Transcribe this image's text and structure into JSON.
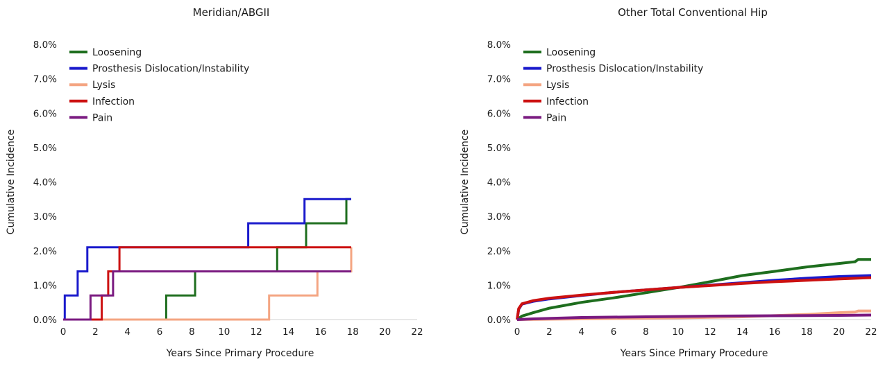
{
  "chart_data": [
    {
      "type": "line",
      "step": true,
      "title": "Meridian/ABGII",
      "xlabel": "Years Since Primary Procedure",
      "ylabel": "Cumulative Incidence",
      "xlim": [
        0,
        22
      ],
      "ylim": [
        0,
        8
      ],
      "xticks": [
        "0",
        "2",
        "4",
        "6",
        "8",
        "10",
        "12",
        "14",
        "16",
        "18",
        "20",
        "22"
      ],
      "yticks": [
        "0.0%",
        "1.0%",
        "2.0%",
        "3.0%",
        "4.0%",
        "5.0%",
        "6.0%",
        "7.0%",
        "8.0%"
      ],
      "grid": false,
      "legend_position": "top-left",
      "series": [
        {
          "name": "Loosening",
          "color": "#1e6e1e",
          "points": [
            [
              0,
              0
            ],
            [
              6.4,
              0
            ],
            [
              6.4,
              0.7
            ],
            [
              8.2,
              0.7
            ],
            [
              8.2,
              1.4
            ],
            [
              13.3,
              1.4
            ],
            [
              13.3,
              2.1
            ],
            [
              15.1,
              2.1
            ],
            [
              15.1,
              2.8
            ],
            [
              17.6,
              2.8
            ],
            [
              17.6,
              3.5
            ],
            [
              17.9,
              3.5
            ]
          ]
        },
        {
          "name": "Prosthesis Dislocation/Instability",
          "color": "#1a1acc",
          "points": [
            [
              0,
              0
            ],
            [
              0.1,
              0
            ],
            [
              0.1,
              0.7
            ],
            [
              0.9,
              0.7
            ],
            [
              0.9,
              1.4
            ],
            [
              1.5,
              1.4
            ],
            [
              1.5,
              2.1
            ],
            [
              11.5,
              2.1
            ],
            [
              11.5,
              2.8
            ],
            [
              15.0,
              2.8
            ],
            [
              15.0,
              3.5
            ],
            [
              17.9,
              3.5
            ]
          ]
        },
        {
          "name": "Lysis",
          "color": "#f4a582",
          "points": [
            [
              0,
              0
            ],
            [
              12.8,
              0
            ],
            [
              12.8,
              0.7
            ],
            [
              15.8,
              0.7
            ],
            [
              15.8,
              1.4
            ],
            [
              17.9,
              1.4
            ],
            [
              17.9,
              2.1
            ]
          ]
        },
        {
          "name": "Infection",
          "color": "#cc1111",
          "points": [
            [
              0,
              0
            ],
            [
              2.4,
              0
            ],
            [
              2.4,
              0.7
            ],
            [
              2.8,
              0.7
            ],
            [
              2.8,
              1.4
            ],
            [
              3.5,
              1.4
            ],
            [
              3.5,
              2.1
            ],
            [
              17.9,
              2.1
            ]
          ]
        },
        {
          "name": "Pain",
          "color": "#7a1a80",
          "points": [
            [
              0,
              0
            ],
            [
              1.7,
              0
            ],
            [
              1.7,
              0.7
            ],
            [
              3.1,
              0.7
            ],
            [
              3.1,
              1.4
            ],
            [
              17.9,
              1.4
            ]
          ]
        }
      ]
    },
    {
      "type": "line",
      "step": false,
      "title": "Other Total Conventional Hip",
      "xlabel": "Years Since Primary Procedure",
      "ylabel": "Cumulative Incidence",
      "xlim": [
        0,
        22
      ],
      "ylim": [
        0,
        8
      ],
      "xticks": [
        "0",
        "2",
        "4",
        "6",
        "8",
        "10",
        "12",
        "14",
        "16",
        "18",
        "20",
        "22"
      ],
      "yticks": [
        "0.0%",
        "1.0%",
        "2.0%",
        "3.0%",
        "4.0%",
        "5.0%",
        "6.0%",
        "7.0%",
        "8.0%"
      ],
      "grid": false,
      "legend_position": "top-left",
      "series": [
        {
          "name": "Loosening",
          "color": "#1e6e1e",
          "points": [
            [
              0,
              0
            ],
            [
              0.3,
              0.1
            ],
            [
              1,
              0.2
            ],
            [
              2,
              0.33
            ],
            [
              4,
              0.5
            ],
            [
              6,
              0.63
            ],
            [
              8,
              0.78
            ],
            [
              10,
              0.93
            ],
            [
              12,
              1.1
            ],
            [
              14,
              1.28
            ],
            [
              16,
              1.4
            ],
            [
              18,
              1.53
            ],
            [
              20,
              1.63
            ],
            [
              21,
              1.68
            ],
            [
              21.2,
              1.75
            ],
            [
              22,
              1.75
            ]
          ]
        },
        {
          "name": "Prosthesis Dislocation/Instability",
          "color": "#1a1acc",
          "points": [
            [
              0,
              0
            ],
            [
              0.1,
              0.3
            ],
            [
              0.3,
              0.45
            ],
            [
              1,
              0.53
            ],
            [
              2,
              0.6
            ],
            [
              4,
              0.7
            ],
            [
              6,
              0.79
            ],
            [
              8,
              0.86
            ],
            [
              10,
              0.93
            ],
            [
              12,
              1.0
            ],
            [
              14,
              1.07
            ],
            [
              16,
              1.14
            ],
            [
              18,
              1.2
            ],
            [
              20,
              1.25
            ],
            [
              22,
              1.28
            ]
          ]
        },
        {
          "name": "Lysis",
          "color": "#f4a582",
          "points": [
            [
              0,
              0
            ],
            [
              2,
              0.01
            ],
            [
              6,
              0.03
            ],
            [
              10,
              0.05
            ],
            [
              14,
              0.08
            ],
            [
              18,
              0.15
            ],
            [
              20,
              0.2
            ],
            [
              21,
              0.22
            ],
            [
              21.2,
              0.25
            ],
            [
              22,
              0.25
            ]
          ]
        },
        {
          "name": "Infection",
          "color": "#cc1111",
          "points": [
            [
              0,
              0
            ],
            [
              0.1,
              0.32
            ],
            [
              0.3,
              0.46
            ],
            [
              1,
              0.55
            ],
            [
              2,
              0.62
            ],
            [
              4,
              0.71
            ],
            [
              6,
              0.79
            ],
            [
              8,
              0.86
            ],
            [
              10,
              0.93
            ],
            [
              12,
              0.99
            ],
            [
              14,
              1.05
            ],
            [
              16,
              1.1
            ],
            [
              18,
              1.14
            ],
            [
              20,
              1.18
            ],
            [
              22,
              1.22
            ]
          ]
        },
        {
          "name": "Pain",
          "color": "#7a1a80",
          "points": [
            [
              0,
              0
            ],
            [
              1,
              0.02
            ],
            [
              4,
              0.06
            ],
            [
              8,
              0.08
            ],
            [
              12,
              0.1
            ],
            [
              16,
              0.11
            ],
            [
              20,
              0.12
            ],
            [
              22,
              0.13
            ]
          ]
        }
      ]
    }
  ]
}
